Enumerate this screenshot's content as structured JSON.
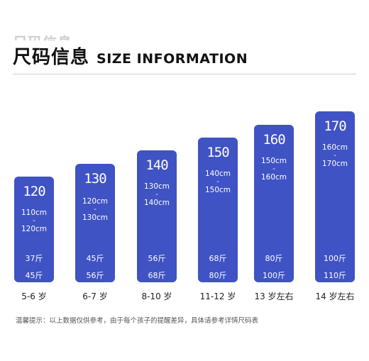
{
  "header": {
    "ghost_title": "尺码信息",
    "title_cn": "尺码信息",
    "title_en": "SIZE INFORMATION"
  },
  "colors": {
    "card": "#3f53c4"
  },
  "sizes": [
    {
      "size": "120",
      "height_from": "110cm",
      "height_to": "120cm",
      "weight_from": "37斤",
      "weight_to": "45斤",
      "age": "5-6 岁"
    },
    {
      "size": "130",
      "height_from": "120cm",
      "height_to": "130cm",
      "weight_from": "45斤",
      "weight_to": "56斤",
      "age": "6-7 岁"
    },
    {
      "size": "140",
      "height_from": "130cm",
      "height_to": "140cm",
      "weight_from": "56斤",
      "weight_to": "68斤",
      "age": "8-10 岁"
    },
    {
      "size": "150",
      "height_from": "140cm",
      "height_to": "150cm",
      "weight_from": "68斤",
      "weight_to": "80斤",
      "age": "11-12 岁"
    },
    {
      "size": "160",
      "height_from": "150cm",
      "height_to": "160cm",
      "weight_from": "80斤",
      "weight_to": "100斤",
      "age": "13 岁左右"
    },
    {
      "size": "170",
      "height_from": "160cm",
      "height_to": "170cm",
      "weight_from": "100斤",
      "weight_to": "110斤",
      "age": "14 岁左右"
    }
  ],
  "dash": "-",
  "note": "温馨提示：以上数据仅供参考，由于每个孩子的提醒差异，具体请参考详情尺码表"
}
